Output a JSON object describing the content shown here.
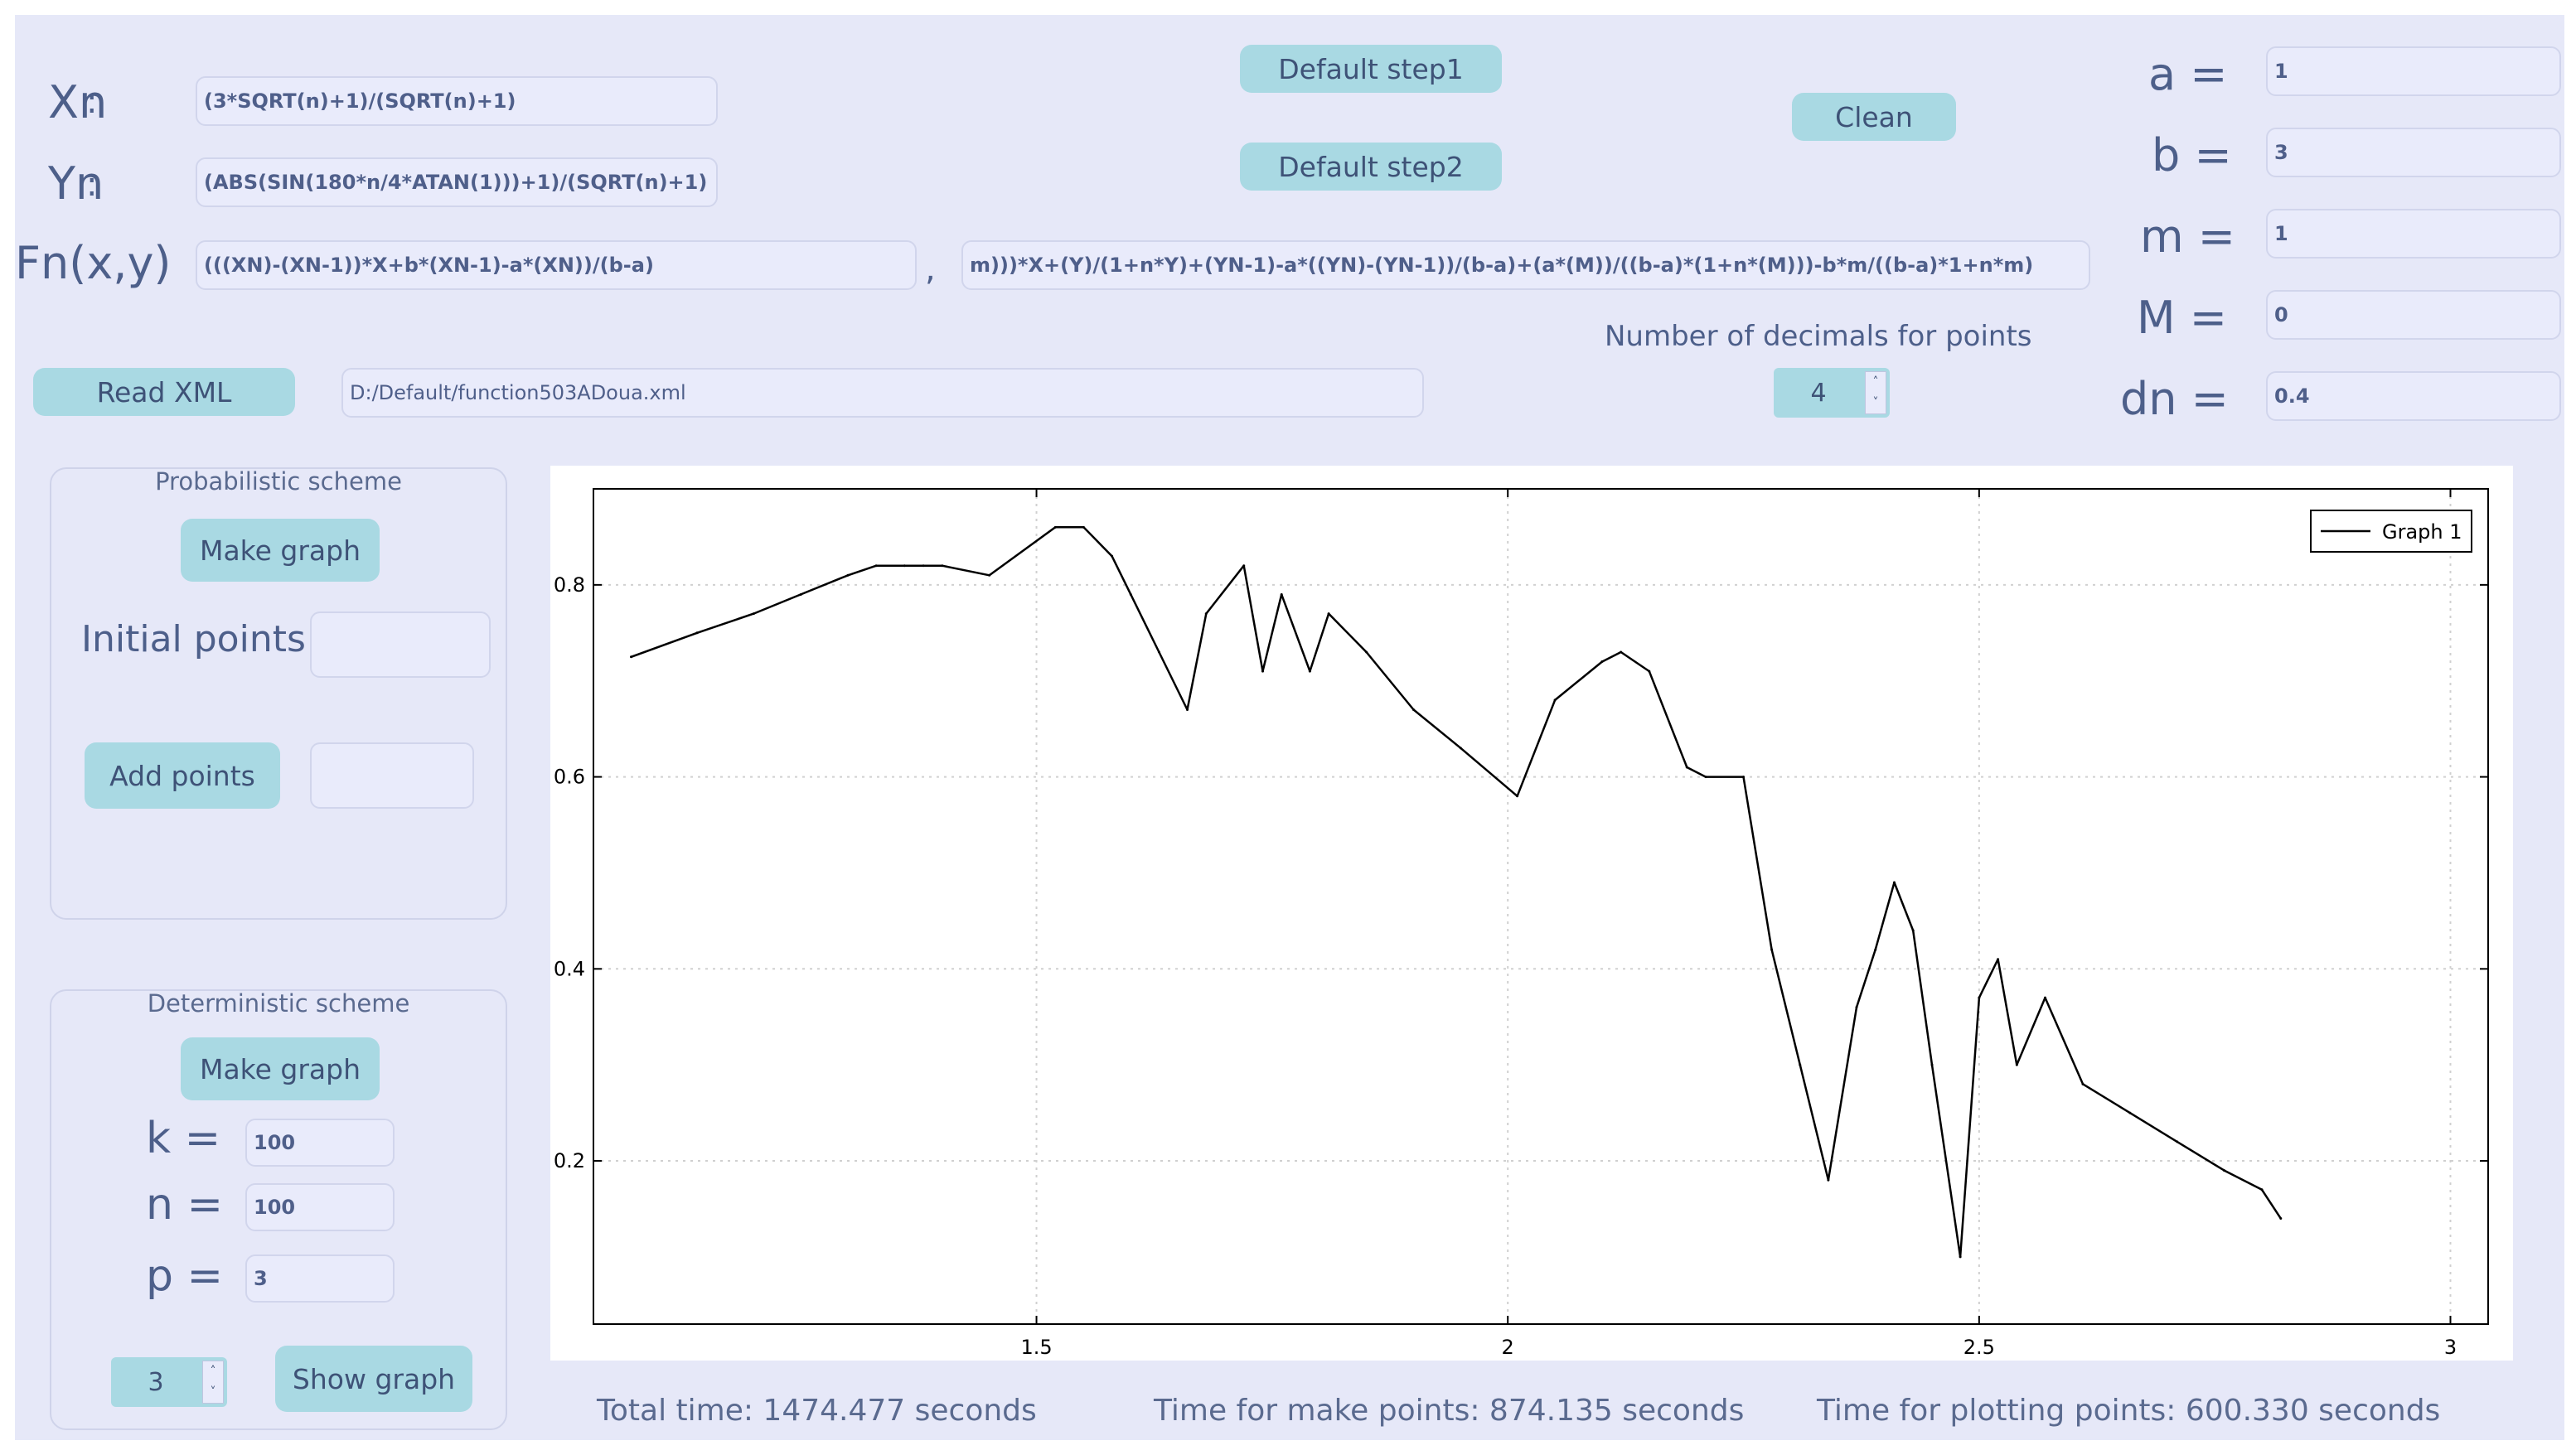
{
  "title_glyph": "ltr",
  "formulas": {
    "xn_label": "Xn",
    "xn_value": "(3*SQRT(n)+1)/(SQRT(n)+1)",
    "yn_label": "Yn",
    "yn_value": "(ABS(SIN(180*n/4*ATAN(1)))+1)/(SQRT(n)+1)",
    "fn_label": "Fn(x,y)",
    "fn_value_1": "(((XN)-(XN-1))*X+b*(XN-1)-a*(XN))/(b-a)",
    "fn_separator": ",",
    "fn_value_2": "m)))*X+(Y)/(1+n*Y)+(YN-1)-a*((YN)-(YN-1))/(b-a)+(a*(M))/((b-a)*(1+n*(M)))-b*m/((b-a)*1+n*m)"
  },
  "buttons": {
    "default_step1": "Default step1",
    "default_step2": "Default step2",
    "clean": "Clean",
    "read_xml": "Read XML"
  },
  "xml_path": "D:/Default/function503ADoua.xml",
  "decimals": {
    "label": "Number of decimals for points",
    "value": "4"
  },
  "params": [
    {
      "label": "a =",
      "value": "1"
    },
    {
      "label": "b =",
      "value": "3"
    },
    {
      "label": "m =",
      "value": "1"
    },
    {
      "label": "M =",
      "value": "0"
    },
    {
      "label": "dn =",
      "value": "0.4"
    }
  ],
  "probabilistic": {
    "title": "Probabilistic scheme",
    "make_graph": "Make graph",
    "initial_points_label": "Initial points:",
    "initial_points_value": "",
    "add_points": "Add points",
    "add_points_value": ""
  },
  "deterministic": {
    "title": "Deterministic scheme",
    "make_graph": "Make graph",
    "k_label": "k =",
    "k_value": "100",
    "n_label": "n =",
    "n_value": "100",
    "p_label": "p =",
    "p_value": "3",
    "spin_value": "3",
    "show_graph": "Show graph"
  },
  "timing": {
    "total": "Total time: 1474.477 seconds",
    "make_points": "Time for make points: 874.135 seconds",
    "plotting": "Time for plotting points: 600.330 seconds"
  },
  "chart_data": {
    "type": "line",
    "title": "",
    "xlabel": "",
    "ylabel": "",
    "xlim": [
      1.03,
      3.04
    ],
    "ylim": [
      0.03,
      0.9
    ],
    "xticks": [
      1.5,
      2,
      2.5,
      3
    ],
    "yticks": [
      0.2,
      0.4,
      0.6,
      0.8
    ],
    "xtick_labels": [
      "1.5",
      "2",
      "2.5",
      "3"
    ],
    "ytick_labels": [
      "0.2",
      "0.4",
      "0.6",
      "0.8"
    ],
    "grid": true,
    "legend": "top-right",
    "series": [
      {
        "name": "Graph 1",
        "color": "#000000",
        "x": [
          1.07,
          1.14,
          1.2,
          1.25,
          1.3,
          1.33,
          1.36,
          1.38,
          1.4,
          1.45,
          1.52,
          1.55,
          1.58,
          1.6,
          1.63,
          1.66,
          1.68,
          1.72,
          1.74,
          1.76,
          1.79,
          1.81,
          1.85,
          1.9,
          1.95,
          2.01,
          2.05,
          2.1,
          2.12,
          2.15,
          2.19,
          2.21,
          2.25,
          2.28,
          2.31,
          2.34,
          2.37,
          2.39,
          2.41,
          2.43,
          2.45,
          2.48,
          2.5,
          2.52,
          2.54,
          2.57,
          2.61,
          2.66,
          2.71,
          2.76,
          2.8,
          2.82
        ],
        "y": [
          0.725,
          0.75,
          0.77,
          0.79,
          0.81,
          0.82,
          0.82,
          0.82,
          0.82,
          0.81,
          0.86,
          0.86,
          0.83,
          0.79,
          0.73,
          0.67,
          0.77,
          0.82,
          0.71,
          0.79,
          0.71,
          0.77,
          0.73,
          0.67,
          0.63,
          0.58,
          0.68,
          0.72,
          0.73,
          0.71,
          0.61,
          0.6,
          0.6,
          0.42,
          0.3,
          0.18,
          0.36,
          0.42,
          0.49,
          0.44,
          0.3,
          0.1,
          0.37,
          0.41,
          0.3,
          0.37,
          0.28,
          0.25,
          0.22,
          0.19,
          0.17,
          0.14
        ]
      }
    ]
  }
}
